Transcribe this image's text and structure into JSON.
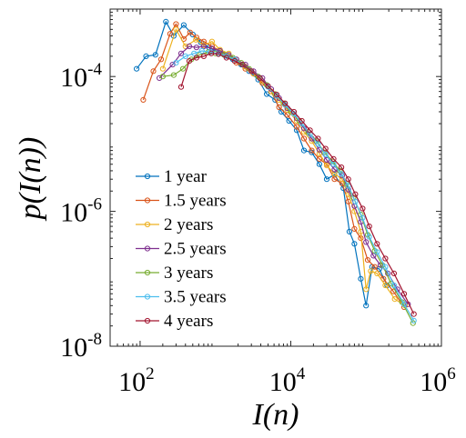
{
  "chart_data": {
    "type": "line",
    "x_scale": "log",
    "y_scale": "log",
    "xlim": [
      40,
      1000000
    ],
    "ylim": [
      1e-08,
      0.001
    ],
    "xlabel": "I(n)",
    "ylabel": "p(I(n))",
    "x_ticks": [
      {
        "value": 100,
        "base": "10",
        "exp": "2"
      },
      {
        "value": 10000,
        "base": "10",
        "exp": "4"
      },
      {
        "value": 1000000,
        "base": "10",
        "exp": "6"
      }
    ],
    "y_ticks": [
      {
        "value": 1e-08,
        "base": "10",
        "exp": "-8"
      },
      {
        "value": 1e-06,
        "base": "10",
        "exp": "-6"
      },
      {
        "value": 0.0001,
        "base": "10",
        "exp": "-4"
      }
    ],
    "grid": false,
    "legend_position": "lower-left",
    "series": [
      {
        "name": "1 year",
        "color": "#0072BD",
        "points": [
          [
            90,
            0.00013
          ],
          [
            120,
            0.0002
          ],
          [
            160,
            0.00021
          ],
          [
            220,
            0.00065
          ],
          [
            280,
            0.0004
          ],
          [
            380,
            0.00058
          ],
          [
            500,
            0.00042
          ],
          [
            640,
            0.00032
          ],
          [
            820,
            0.00027
          ],
          [
            1000,
            0.00024
          ],
          [
            1300,
            0.00021
          ],
          [
            1700,
            0.00018
          ],
          [
            2200,
            0.00015
          ],
          [
            2800,
            0.00012
          ],
          [
            3700,
            9e-05
          ],
          [
            4800,
            5.5e-05
          ],
          [
            6200,
            4.5e-05
          ],
          [
            7500,
            3e-05
          ],
          [
            9500,
            2.2e-05
          ],
          [
            12000,
            1.6e-05
          ],
          [
            15000,
            8e-06
          ],
          [
            19000,
            7.5e-06
          ],
          [
            24000,
            5e-06
          ],
          [
            30000,
            3e-06
          ],
          [
            38000,
            3.5e-06
          ],
          [
            50000,
            2.2e-06
          ],
          [
            60000,
            5e-07
          ],
          [
            70000,
            3.3e-07
          ],
          [
            85000,
            1e-07
          ],
          [
            100000,
            4e-08
          ],
          [
            120000,
            1.5e-07
          ],
          [
            150000,
            1.4e-07
          ],
          [
            190000,
            8e-08
          ]
        ]
      },
      {
        "name": "1.5 years",
        "color": "#D95319",
        "points": [
          [
            110,
            4.5e-05
          ],
          [
            150,
            0.00012
          ],
          [
            190,
            0.00018
          ],
          [
            250,
            0.00043
          ],
          [
            300,
            0.0006
          ],
          [
            380,
            0.00036
          ],
          [
            460,
            0.00045
          ],
          [
            560,
            0.00038
          ],
          [
            700,
            0.00033
          ],
          [
            900,
            0.00028
          ],
          [
            1150,
            0.00024
          ],
          [
            1500,
            0.0002
          ],
          [
            1900,
            0.00016
          ],
          [
            2500,
            0.00013
          ],
          [
            3200,
            0.00011
          ],
          [
            4200,
            8e-05
          ],
          [
            5500,
            6e-05
          ],
          [
            7000,
            3.5e-05
          ],
          [
            9000,
            2.7e-05
          ],
          [
            12000,
            1.8e-05
          ],
          [
            15000,
            1.2e-05
          ],
          [
            19000,
            8e-06
          ],
          [
            24000,
            6e-06
          ],
          [
            30000,
            5e-06
          ],
          [
            38000,
            3e-06
          ],
          [
            48000,
            2.6e-06
          ],
          [
            58000,
            1.4e-06
          ],
          [
            70000,
            5.5e-07
          ],
          [
            85000,
            4e-07
          ],
          [
            105000,
            1.9e-07
          ],
          [
            130000,
            1.5e-07
          ],
          [
            170000,
            1e-07
          ],
          [
            230000,
            6.5e-08
          ],
          [
            320000,
            3.8e-08
          ]
        ]
      },
      {
        "name": "2 years",
        "color": "#EDB120",
        "points": [
          [
            200,
            0.00013
          ],
          [
            300,
            0.0005
          ],
          [
            400,
            0.00028
          ],
          [
            550,
            0.00035
          ],
          [
            700,
            0.00029
          ],
          [
            900,
            0.00033
          ],
          [
            1150,
            0.00025
          ],
          [
            1500,
            0.00022
          ],
          [
            1900,
            0.00018
          ],
          [
            2500,
            0.00014
          ],
          [
            3200,
            0.00011
          ],
          [
            4200,
            8.5e-05
          ],
          [
            5500,
            6e-05
          ],
          [
            7000,
            4.5e-05
          ],
          [
            9000,
            3.2e-05
          ],
          [
            12000,
            2.2e-05
          ],
          [
            15000,
            1.5e-05
          ],
          [
            19000,
            1.1e-05
          ],
          [
            24000,
            7.2e-06
          ],
          [
            30000,
            4.8e-06
          ],
          [
            38000,
            3.6e-06
          ],
          [
            48000,
            3e-06
          ],
          [
            58000,
            1.8e-06
          ],
          [
            70000,
            1e-06
          ],
          [
            85000,
            5e-07
          ],
          [
            100000,
            7e-08
          ],
          [
            115000,
            1.3e-07
          ],
          [
            140000,
            1.2e-07
          ],
          [
            180000,
            8e-08
          ],
          [
            240000,
            5e-08
          ],
          [
            330000,
            4e-08
          ]
        ]
      },
      {
        "name": "2.5 years",
        "color": "#7E2F8E",
        "points": [
          [
            180,
            9.5e-05
          ],
          [
            270,
            0.00015
          ],
          [
            350,
            0.00022
          ],
          [
            450,
            0.00028
          ],
          [
            560,
            0.00027
          ],
          [
            700,
            0.00028
          ],
          [
            900,
            0.00026
          ],
          [
            1150,
            0.00024
          ],
          [
            1500,
            0.00021
          ],
          [
            1900,
            0.00018
          ],
          [
            2500,
            0.00015
          ],
          [
            3200,
            0.00012
          ],
          [
            4200,
            9.5e-05
          ],
          [
            5500,
            6.5e-05
          ],
          [
            7000,
            4.8e-05
          ],
          [
            9000,
            3.4e-05
          ],
          [
            12000,
            2.4e-05
          ],
          [
            15000,
            1.7e-05
          ],
          [
            19000,
            1.2e-05
          ],
          [
            24000,
            8.2e-06
          ],
          [
            30000,
            5.8e-06
          ],
          [
            38000,
            4.2e-06
          ],
          [
            48000,
            3.4e-06
          ],
          [
            58000,
            2.1e-06
          ],
          [
            70000,
            1.2e-06
          ],
          [
            85000,
            7e-07
          ],
          [
            100000,
            3.5e-07
          ],
          [
            125000,
            2.2e-07
          ],
          [
            155000,
            1.6e-07
          ],
          [
            195000,
            1.2e-07
          ],
          [
            260000,
            7e-08
          ],
          [
            360000,
            4.2e-08
          ]
        ]
      },
      {
        "name": "3 years",
        "color": "#77AC30",
        "points": [
          [
            200,
            0.0001
          ],
          [
            280,
            0.000105
          ],
          [
            370,
            0.00013
          ],
          [
            480,
            0.00018
          ],
          [
            620,
            0.00021
          ],
          [
            800,
            0.00023
          ],
          [
            1000,
            0.00022
          ],
          [
            1300,
            0.00021
          ],
          [
            1700,
            0.00019
          ],
          [
            2200,
            0.00016
          ],
          [
            2800,
            0.00013
          ],
          [
            3700,
            0.0001
          ],
          [
            4800,
            7.5e-05
          ],
          [
            6200,
            5.5e-05
          ],
          [
            8000,
            4e-05
          ],
          [
            10000,
            3e-05
          ],
          [
            13000,
            2.2e-05
          ],
          [
            17000,
            1.5e-05
          ],
          [
            22000,
            1.1e-05
          ],
          [
            28000,
            7.5e-06
          ],
          [
            36000,
            5.5e-06
          ],
          [
            45000,
            4e-06
          ],
          [
            55000,
            2.6e-06
          ],
          [
            68000,
            1.6e-06
          ],
          [
            85000,
            9e-07
          ],
          [
            105000,
            4.5e-07
          ],
          [
            130000,
            2.6e-07
          ],
          [
            165000,
            1.6e-07
          ],
          [
            215000,
            8.5e-08
          ],
          [
            300000,
            4.5e-08
          ],
          [
            420000,
            2.2e-08
          ]
        ]
      },
      {
        "name": "3.5 years",
        "color": "#4DBEEE",
        "points": [
          [
            300,
            0.00016
          ],
          [
            400,
            0.0002
          ],
          [
            520,
            0.00022
          ],
          [
            660,
            0.00024
          ],
          [
            850,
            0.00023
          ],
          [
            1100,
            0.00022
          ],
          [
            1400,
            0.0002
          ],
          [
            1800,
            0.00018
          ],
          [
            2300,
            0.00015
          ],
          [
            3000,
            0.00012
          ],
          [
            3900,
            9.5e-05
          ],
          [
            5000,
            7e-05
          ],
          [
            6500,
            5.2e-05
          ],
          [
            8400,
            3.8e-05
          ],
          [
            11000,
            2.8e-05
          ],
          [
            14000,
            2e-05
          ],
          [
            18000,
            1.4e-05
          ],
          [
            23000,
            1e-05
          ],
          [
            29000,
            7e-06
          ],
          [
            37000,
            5e-06
          ],
          [
            47000,
            3.6e-06
          ],
          [
            58000,
            2.4e-06
          ],
          [
            72000,
            1.4e-06
          ],
          [
            90000,
            8e-07
          ],
          [
            110000,
            4.2e-07
          ],
          [
            140000,
            2.5e-07
          ],
          [
            180000,
            1.5e-07
          ],
          [
            235000,
            8e-08
          ],
          [
            320000,
            4.2e-08
          ],
          [
            430000,
            2.4e-08
          ]
        ]
      },
      {
        "name": "4 years",
        "color": "#A2142F",
        "points": [
          [
            350,
            7e-05
          ],
          [
            450,
            0.00017
          ],
          [
            560,
            0.00019
          ],
          [
            700,
            0.0002
          ],
          [
            880,
            0.00022
          ],
          [
            1100,
            0.000215
          ],
          [
            1400,
            0.00019
          ],
          [
            1800,
            0.00017
          ],
          [
            2300,
            0.00015
          ],
          [
            3000,
            0.00012
          ],
          [
            3900,
            9.5e-05
          ],
          [
            5000,
            7.2e-05
          ],
          [
            6500,
            5.4e-05
          ],
          [
            8400,
            4e-05
          ],
          [
            11000,
            3e-05
          ],
          [
            14000,
            2.2e-05
          ],
          [
            18000,
            1.6e-05
          ],
          [
            23000,
            1.2e-05
          ],
          [
            29000,
            8.5e-06
          ],
          [
            37000,
            6e-06
          ],
          [
            47000,
            4.5e-06
          ],
          [
            58000,
            3e-06
          ],
          [
            72000,
            1.8e-06
          ],
          [
            90000,
            1.1e-06
          ],
          [
            110000,
            6e-07
          ],
          [
            140000,
            3.3e-07
          ],
          [
            180000,
            2e-07
          ],
          [
            235000,
            1.2e-07
          ],
          [
            320000,
            6e-08
          ],
          [
            430000,
            3e-08
          ]
        ]
      }
    ]
  }
}
